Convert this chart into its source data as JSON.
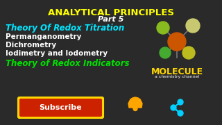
{
  "bg_color": "#2a2a2a",
  "title1": "ANALYTICAL PRINCIPLES",
  "title1_color": "#ffff00",
  "title2": "Part 5",
  "title2_color": "#ffffff",
  "line1": "Theory Of Redox Titration",
  "line1_color": "#00e5ff",
  "line2": "Permanganometry",
  "line2_color": "#ffffff",
  "line3": "Dichrometry",
  "line3_color": "#ffffff",
  "line4": "Iodimetry and Iodometry",
  "line4_color": "#ffffff",
  "line5": "Theory of Redox Indicators",
  "line5_color": "#00e000",
  "subscribe_text": "Subscribe",
  "subscribe_bg": "#cc2200",
  "subscribe_border": "#ffd700",
  "subscribe_text_color": "#ffffff",
  "molecule_text": "MOLECULE",
  "molecule_text_color": "#ffd700",
  "molecule_sub": "a chemistry channel",
  "molecule_sub_color": "#ffffff",
  "bell_color": "#ffa500",
  "share_color": "#00cfff"
}
